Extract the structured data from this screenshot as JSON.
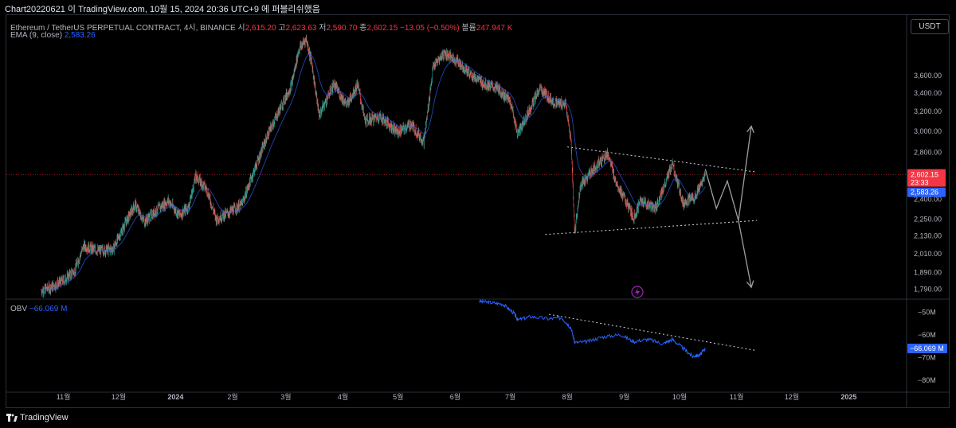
{
  "header": {
    "title": "Chart20220621 이 TradingView.com, 10월 15, 2024 20:36 UTC+9 에 퍼블리쉬했음"
  },
  "legend": {
    "symbol": "Ethereum / TetherUS PERPETUAL CONTRACT, 4시, BINANCE",
    "open_label": "시",
    "open": "2,615.20",
    "high_label": "고",
    "high": "2,623.63",
    "low_label": "저",
    "low": "2,590.70",
    "close_label": "종",
    "close": "2,602.15",
    "change": "−13.05 (−0.50%)",
    "volume_label": "볼륨",
    "volume": "247.947 K",
    "ema_label": "EMA (9, close)",
    "ema_value": "2,583.26",
    "obv_label": "OBV",
    "obv_value": "−66.069 M"
  },
  "currency": "USDT",
  "footer": {
    "brand": "TradingView"
  },
  "colors": {
    "up": "#26a69a",
    "down": "#ef5350",
    "ema": "#2962ff",
    "obv": "#2962ff",
    "price_tag": "#f23645",
    "annotation": "#9e9e9e"
  },
  "chart_data": [
    {
      "type": "line",
      "price_scale": "log",
      "x_ticks": [
        "11월",
        "12월",
        "2024",
        "2월",
        "3월",
        "4월",
        "5월",
        "6월",
        "7월",
        "8월",
        "9월",
        "10월",
        "11월",
        "12월",
        "2025"
      ],
      "y_ticks": [
        "1,790.00",
        "1,890.00",
        "2,010.00",
        "2,130.00",
        "2,250.00",
        "2,400.00",
        "2,600.00",
        "2,800.00",
        "3,000.00",
        "3,200.00",
        "3,400.00",
        "3,600.00"
      ],
      "ylim": [
        1750,
        4100
      ],
      "series": [
        {
          "x": [
            "2023-10-20",
            "2023-10-25",
            "2023-11-01",
            "2023-11-07",
            "2023-11-12",
            "2023-11-20",
            "2023-11-28",
            "2023-12-05",
            "2023-12-10",
            "2023-12-15",
            "2023-12-22",
            "2023-12-28",
            "2024-01-03",
            "2024-01-08",
            "2024-01-12",
            "2024-01-18",
            "2024-01-23",
            "2024-01-30",
            "2024-02-06",
            "2024-02-12",
            "2024-02-20",
            "2024-02-27",
            "2024-03-04",
            "2024-03-08",
            "2024-03-12",
            "2024-03-15",
            "2024-03-19",
            "2024-03-27",
            "2024-04-03",
            "2024-04-09",
            "2024-04-13",
            "2024-04-21",
            "2024-05-01",
            "2024-05-08",
            "2024-05-15",
            "2024-05-20",
            "2024-05-26",
            "2024-06-03",
            "2024-06-09",
            "2024-06-17",
            "2024-06-24",
            "2024-07-01",
            "2024-07-05",
            "2024-07-10",
            "2024-07-17",
            "2024-07-25",
            "2024-07-31",
            "2024-08-03",
            "2024-08-05",
            "2024-08-08",
            "2024-08-15",
            "2024-08-23",
            "2024-08-27",
            "2024-09-06",
            "2024-09-10",
            "2024-09-18",
            "2024-09-27",
            "2024-10-03",
            "2024-10-10",
            "2024-10-15"
          ],
          "y": [
            1780,
            1800,
            1840,
            1900,
            2060,
            2030,
            2040,
            2230,
            2360,
            2230,
            2320,
            2390,
            2280,
            2340,
            2590,
            2480,
            2250,
            2300,
            2360,
            2610,
            2960,
            3240,
            3490,
            3920,
            4060,
            3750,
            3160,
            3500,
            3270,
            3500,
            3100,
            3150,
            2990,
            3070,
            2900,
            3700,
            3880,
            3760,
            3620,
            3500,
            3450,
            3310,
            2970,
            3160,
            3450,
            3290,
            3280,
            2900,
            2150,
            2500,
            2650,
            2790,
            2560,
            2260,
            2390,
            2330,
            2690,
            2370,
            2430,
            2602.15
          ]
        },
        {
          "name": "EMA (9, close)",
          "last": 2583.26
        }
      ],
      "current_price_tag": "2,602.15",
      "countdown_tag": "23:33",
      "ema_tag": "2,583.26",
      "annotations": {
        "triangle_upper": [
          [
            "2024-08-01",
            2850
          ],
          [
            "2024-11-12",
            2625
          ]
        ],
        "triangle_lower": [
          [
            "2024-07-20",
            2140
          ],
          [
            "2024-11-12",
            2240
          ]
        ],
        "projection_path": [
          [
            "2024-10-15",
            2650
          ],
          [
            "2024-10-21",
            2330
          ],
          [
            "2024-10-27",
            2550
          ],
          [
            "2024-11-02",
            2240
          ]
        ],
        "arrow_up_target": [
          [
            "2024-11-02",
            2240
          ],
          [
            "2024-11-09",
            3050
          ]
        ],
        "arrow_down_target": [
          [
            "2024-11-02",
            2240
          ],
          [
            "2024-11-09",
            1800
          ]
        ]
      }
    },
    {
      "type": "line",
      "name": "OBV",
      "y_ticks": [
        "−50M",
        "−60M",
        "−70M",
        "−80M"
      ],
      "ylim": [
        -85,
        -45
      ],
      "series": [
        {
          "x": [
            "2024-06-14",
            "2024-06-20",
            "2024-06-27",
            "2024-07-03",
            "2024-07-05",
            "2024-07-12",
            "2024-07-22",
            "2024-07-29",
            "2024-08-03",
            "2024-08-05",
            "2024-08-12",
            "2024-08-20",
            "2024-08-30",
            "2024-09-06",
            "2024-09-14",
            "2024-09-22",
            "2024-09-27",
            "2024-10-03",
            "2024-10-08",
            "2024-10-12",
            "2024-10-15"
          ],
          "y": [
            -45.2,
            -45.8,
            -46.5,
            -50.5,
            -53.5,
            -52.0,
            -53.0,
            -52.5,
            -57,
            -63.5,
            -63,
            -61,
            -60,
            -63,
            -62,
            -64,
            -62,
            -66,
            -69.5,
            -69,
            -66.069
          ]
        }
      ],
      "value_tag": "−66.069 M",
      "annotations": {
        "trend_line": [
          [
            "2024-07-22",
            -51
          ],
          [
            "2024-11-12",
            -67
          ]
        ]
      }
    }
  ]
}
